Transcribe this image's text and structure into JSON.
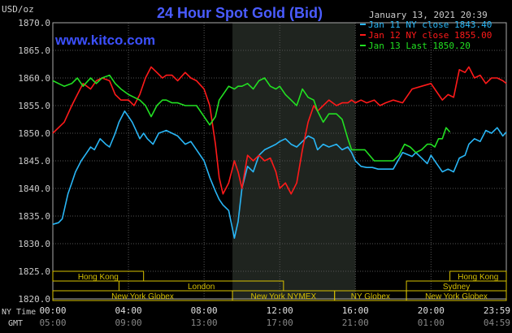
{
  "chart_data": {
    "type": "line",
    "title": "24 Hour Spot Gold (Bid)",
    "watermark": "www.kitco.com",
    "timestamp": "January 13, 2021 20:39",
    "y_unit_label": "USD/oz",
    "ylim": [
      1820,
      1870
    ],
    "y_ticks": [
      "1870.0",
      "1865.0",
      "1860.0",
      "1855.0",
      "1850.0",
      "1845.0",
      "1840.0",
      "1835.0",
      "1830.0",
      "1825.0",
      "1820.0"
    ],
    "x_row_labels": {
      "ny": "NY Time",
      "gmt": "GMT"
    },
    "x_ticks_ny": [
      "00:00",
      "04:00",
      "08:00",
      "12:00",
      "16:00",
      "20:00",
      "23:59"
    ],
    "x_ticks_gmt": [
      "05:00",
      "09:00",
      "13:00",
      "17:00",
      "21:00",
      "01:00",
      "04:59"
    ],
    "x_hours": [
      0,
      4,
      8,
      12,
      16,
      20,
      23.983
    ],
    "shaded_hours": [
      9.5,
      16
    ],
    "legend": [
      {
        "label": "Jan 11 NY close 1843.40",
        "color": "#29b6f6"
      },
      {
        "label": "Jan 12 NY close 1855.00",
        "color": "#ff1a1a"
      },
      {
        "label": "Jan 13 Last 1850.20",
        "color": "#22e022"
      }
    ],
    "sessions": {
      "row1": [
        {
          "label": "Hong Kong",
          "start": 0,
          "end": 4.8
        },
        {
          "label": "Hong Kong",
          "start": 21,
          "end": 23.983
        }
      ],
      "row2": [
        {
          "label": "London",
          "start": 3.5,
          "end": 12.2
        },
        {
          "label": "Sydney",
          "start": 18.7,
          "end": 23.983
        }
      ],
      "row3": [
        {
          "label": "New York Globex",
          "start": 0,
          "end": 9.5
        },
        {
          "label": "New York NYMEX",
          "start": 9.5,
          "end": 14.9
        },
        {
          "label": "NY Globex",
          "start": 14.9,
          "end": 18.7
        },
        {
          "label": "New York Globex",
          "start": 18.7,
          "end": 23.983
        }
      ]
    },
    "series": [
      {
        "name": "Jan 11 NY close 1843.40",
        "color": "#29b6f6",
        "x": [
          0,
          0.3,
          0.5,
          0.8,
          1.0,
          1.2,
          1.5,
          1.8,
          2.0,
          2.2,
          2.5,
          2.8,
          3.0,
          3.3,
          3.5,
          3.8,
          4.0,
          4.2,
          4.4,
          4.6,
          4.8,
          5.0,
          5.3,
          5.6,
          6.0,
          6.3,
          6.6,
          7.0,
          7.3,
          7.6,
          8.0,
          8.3,
          8.6,
          8.8,
          9.0,
          9.3,
          9.6,
          9.8,
          10.0,
          10.3,
          10.6,
          10.9,
          11.2,
          11.5,
          11.8,
          12.0,
          12.3,
          12.6,
          12.9,
          13.2,
          13.5,
          13.8,
          14.0,
          14.3,
          14.6,
          15.0,
          15.3,
          15.6,
          15.8,
          16.0,
          16.3,
          16.6,
          16.9,
          17.2,
          17.5,
          18.0,
          18.5,
          19.0,
          19.2,
          19.5,
          19.8,
          20.0,
          20.3,
          20.6,
          20.9,
          21.2,
          21.5,
          21.8,
          22.0,
          22.3,
          22.6,
          22.9,
          23.2,
          23.5,
          23.8,
          23.983
        ],
        "y": [
          1833.5,
          1833.8,
          1834.5,
          1839,
          1841,
          1843,
          1845,
          1846.5,
          1847.5,
          1847,
          1849,
          1848,
          1847.5,
          1850,
          1852,
          1854,
          1853,
          1852,
          1850.5,
          1849,
          1850,
          1849,
          1848,
          1850,
          1850.5,
          1850,
          1849.5,
          1848,
          1848.5,
          1847,
          1845,
          1842,
          1839.5,
          1838,
          1837,
          1836,
          1831,
          1834,
          1840,
          1844,
          1843,
          1846,
          1847,
          1847.5,
          1848,
          1848.5,
          1849,
          1848,
          1847.5,
          1848.5,
          1849.5,
          1849,
          1847,
          1848,
          1847.5,
          1848,
          1847,
          1847.5,
          1846.5,
          1845,
          1844,
          1843.8,
          1843.8,
          1843.5,
          1843.5,
          1843.5,
          1846.5,
          1845.8,
          1846.5,
          1845.5,
          1844.5,
          1846,
          1844.5,
          1843,
          1843.5,
          1843,
          1845.5,
          1846,
          1848,
          1849,
          1848.5,
          1850.5,
          1850,
          1851,
          1849.5,
          1850.2
        ]
      },
      {
        "name": "Jan 12 NY close 1855.00",
        "color": "#ff1a1a",
        "x": [
          0,
          0.3,
          0.6,
          1.0,
          1.3,
          1.6,
          2.0,
          2.3,
          2.6,
          3.0,
          3.3,
          3.6,
          4.0,
          4.3,
          4.6,
          4.9,
          5.2,
          5.5,
          5.8,
          6.0,
          6.3,
          6.6,
          7.0,
          7.3,
          7.6,
          8.0,
          8.3,
          8.6,
          8.8,
          9.0,
          9.3,
          9.6,
          9.8,
          10.0,
          10.3,
          10.6,
          10.9,
          11.2,
          11.5,
          11.8,
          12.0,
          12.3,
          12.6,
          12.9,
          13.2,
          13.5,
          13.8,
          14.0,
          14.3,
          14.6,
          15.0,
          15.3,
          15.6,
          15.8,
          16.0,
          16.3,
          16.6,
          17.0,
          17.3,
          17.6,
          18.0,
          18.5,
          19.0,
          19.5,
          20.0,
          20.3,
          20.6,
          20.9,
          21.2,
          21.5,
          21.8,
          22.0,
          22.3,
          22.6,
          22.9,
          23.2,
          23.5,
          23.8,
          23.983
        ],
        "y": [
          1850,
          1851,
          1852,
          1855,
          1857,
          1859,
          1858,
          1859.5,
          1860,
          1859.5,
          1857,
          1856,
          1856,
          1855,
          1857,
          1860,
          1862,
          1861,
          1860,
          1860.5,
          1860.5,
          1859.5,
          1861,
          1860,
          1859.5,
          1858,
          1855,
          1848,
          1842,
          1839,
          1841,
          1845,
          1843,
          1840,
          1846,
          1845,
          1846,
          1845,
          1845.5,
          1843,
          1840,
          1841,
          1839,
          1841,
          1847,
          1852,
          1855,
          1854,
          1855,
          1856,
          1855,
          1855.5,
          1855.5,
          1856,
          1855.5,
          1856,
          1855.5,
          1856,
          1855,
          1855.5,
          1856,
          1855.5,
          1858,
          1858.5,
          1859,
          1857.5,
          1856,
          1857,
          1856.5,
          1861.5,
          1861,
          1862,
          1860,
          1860.5,
          1859,
          1860,
          1860,
          1859.5,
          1859
        ]
      },
      {
        "name": "Jan 13 Last 1850.20",
        "color": "#22e022",
        "x": [
          0,
          0.3,
          0.6,
          1.0,
          1.3,
          1.6,
          2.0,
          2.3,
          2.6,
          3.0,
          3.3,
          3.6,
          4.0,
          4.3,
          4.6,
          4.9,
          5.2,
          5.5,
          5.8,
          6.0,
          6.3,
          6.6,
          7.0,
          7.3,
          7.6,
          8.0,
          8.3,
          8.6,
          8.8,
          9.0,
          9.3,
          9.6,
          9.8,
          10.0,
          10.3,
          10.6,
          10.9,
          11.2,
          11.5,
          11.8,
          12.0,
          12.3,
          12.6,
          12.9,
          13.2,
          13.5,
          13.8,
          14.0,
          14.3,
          14.6,
          15.0,
          15.3,
          15.6,
          15.8,
          16.0,
          16.5,
          17.0,
          17.5,
          18.0,
          18.3,
          18.6,
          18.9,
          19.2,
          19.5,
          19.8,
          20.0,
          20.2,
          20.4,
          20.6,
          20.8,
          21.0
        ],
        "y": [
          1859.5,
          1859,
          1858.5,
          1859,
          1860,
          1858.5,
          1860,
          1859,
          1860,
          1860.5,
          1859,
          1858,
          1857,
          1856.5,
          1856,
          1855,
          1853,
          1855,
          1856,
          1856,
          1855.5,
          1855.5,
          1855,
          1855,
          1855,
          1853,
          1851.5,
          1853,
          1856,
          1857,
          1858.5,
          1858,
          1858.5,
          1858.5,
          1859,
          1858,
          1859.5,
          1860,
          1858.5,
          1858,
          1858.5,
          1857,
          1856,
          1855,
          1858,
          1856.5,
          1856,
          1854,
          1852,
          1853.5,
          1853.5,
          1852.5,
          1849,
          1847,
          1847,
          1847,
          1845,
          1845,
          1845,
          1846,
          1848,
          1847.5,
          1846.5,
          1847,
          1848,
          1848,
          1847.5,
          1849,
          1849,
          1851,
          1850.2
        ]
      }
    ]
  }
}
